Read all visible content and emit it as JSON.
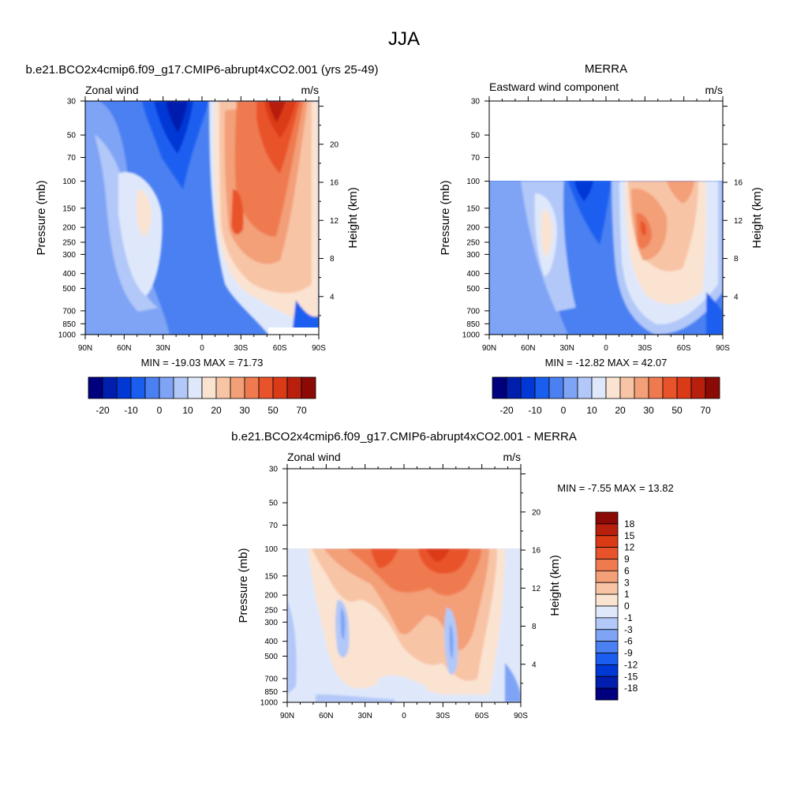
{
  "page_title": "JJA",
  "colors": {
    "abs": [
      "#00007f",
      "#001fae",
      "#0038d6",
      "#1a5ef0",
      "#4b80f2",
      "#7fa4f5",
      "#b2c8f8",
      "#dfe8fb",
      "#fbe3d2",
      "#f8c4a6",
      "#f39f78",
      "#ef7a4f",
      "#e9532b",
      "#db3a17",
      "#b81f0d",
      "#8c0a05"
    ],
    "diff": [
      "#8c0a05",
      "#b81f0d",
      "#db3a17",
      "#e9532b",
      "#ef7a4f",
      "#f39f78",
      "#f8c4a6",
      "#fbe3d2",
      "#dfe8fb",
      "#b2c8f8",
      "#7fa4f5",
      "#4b80f2",
      "#1a5ef0",
      "#0038d6",
      "#001fae",
      "#00007f"
    ]
  },
  "panels": {
    "model": {
      "title": "b.e21.BCO2x4cmip6.f09_g17.CMIP6-abrupt4xCO2.001 (yrs 25-49)",
      "left_label": "Zonal wind",
      "right_label": "m/s",
      "ylabel": "Pressure (mb)",
      "y2label": "Height (km)",
      "stats": "MIN = -19.03  MAX =  71.73"
    },
    "merra": {
      "title": "MERRA",
      "left_label": "Eastward wind component",
      "right_label": "m/s",
      "ylabel": "Pressure (mb)",
      "y2label": "Height (km)",
      "stats": "MIN = -12.82  MAX =  42.07"
    },
    "diff": {
      "title": "b.e21.BCO2x4cmip6.f09_g17.CMIP6-abrupt4xCO2.001 - MERRA",
      "left_label": "Zonal wind",
      "right_label": "m/s",
      "ylabel": "Pressure (mb)",
      "y2label": "Height (km)",
      "stats": "MIN =  -7.55  MAX =  13.82"
    }
  },
  "chart_data": [
    {
      "type": "heatmap",
      "name": "model",
      "x_ticks": [
        "90N",
        "60N",
        "30N",
        "0",
        "30S",
        "60S",
        "90S"
      ],
      "x_values": [
        90,
        60,
        30,
        0,
        -30,
        -60,
        -90
      ],
      "pressure_ticks": [
        "30",
        "50",
        "70",
        "100",
        "150",
        "200",
        "250",
        "300",
        "400",
        "500",
        "700",
        "850",
        "1000"
      ],
      "pressure_values": [
        30,
        50,
        70,
        100,
        150,
        200,
        250,
        300,
        400,
        500,
        700,
        850,
        1000
      ],
      "height_ticks": [
        "4",
        "8",
        "12",
        "16",
        "20"
      ],
      "height_values": [
        4,
        8,
        12,
        16,
        20
      ],
      "colorbar_orientation": "horizontal",
      "colorbar_labels": [
        "-20",
        "-10",
        "0",
        "10",
        "20",
        "30",
        "50",
        "70"
      ],
      "min": -19.03,
      "max": 71.73
    },
    {
      "type": "heatmap",
      "name": "merra",
      "x_ticks": [
        "90N",
        "60N",
        "30N",
        "0",
        "30S",
        "60S",
        "90S"
      ],
      "x_values": [
        90,
        60,
        30,
        0,
        -30,
        -60,
        -90
      ],
      "pressure_ticks": [
        "30",
        "50",
        "70",
        "100",
        "150",
        "200",
        "250",
        "300",
        "400",
        "500",
        "700",
        "850",
        "1000"
      ],
      "pressure_values": [
        30,
        50,
        70,
        100,
        150,
        200,
        250,
        300,
        400,
        500,
        700,
        850,
        1000
      ],
      "height_ticks": [
        "4",
        "8",
        "12",
        "16"
      ],
      "height_values": [
        4,
        8,
        12,
        16
      ],
      "data_top_pressure": 100,
      "colorbar_orientation": "horizontal",
      "colorbar_labels": [
        "-20",
        "-10",
        "0",
        "10",
        "20",
        "30",
        "50",
        "70"
      ],
      "min": -12.82,
      "max": 42.07
    },
    {
      "type": "heatmap",
      "name": "difference",
      "x_ticks": [
        "90N",
        "60N",
        "30N",
        "0",
        "30S",
        "60S",
        "90S"
      ],
      "x_values": [
        90,
        60,
        30,
        0,
        -30,
        -60,
        -90
      ],
      "pressure_ticks": [
        "30",
        "50",
        "70",
        "100",
        "150",
        "200",
        "250",
        "300",
        "400",
        "500",
        "700",
        "850",
        "1000"
      ],
      "pressure_values": [
        30,
        50,
        70,
        100,
        150,
        200,
        250,
        300,
        400,
        500,
        700,
        850,
        1000
      ],
      "height_ticks": [
        "4",
        "8",
        "12",
        "16",
        "20"
      ],
      "height_values": [
        4,
        8,
        12,
        16,
        20
      ],
      "data_top_pressure": 100,
      "colorbar_orientation": "vertical",
      "colorbar_labels": [
        "18",
        "15",
        "12",
        "9",
        "6",
        "3",
        "1",
        "0",
        "-1",
        "-3",
        "-6",
        "-9",
        "-12",
        "-15",
        "-18"
      ],
      "min": -7.55,
      "max": 13.82
    }
  ]
}
